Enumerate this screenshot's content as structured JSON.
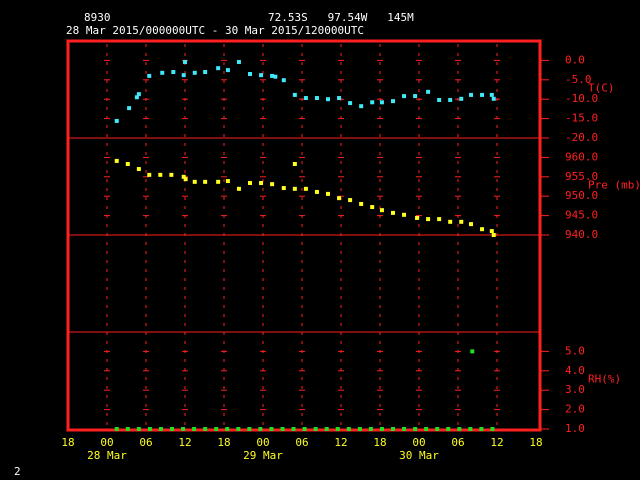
{
  "header": {
    "station": "8930",
    "location": "72.53S   97.54W   145M",
    "period": "28 Mar 2015/000000UTC - 30 Mar 2015/120000UTC"
  },
  "page_number": "2",
  "chart_data": [
    {
      "type": "scatter",
      "xlim": [
        0,
        72
      ],
      "ylim": [
        -20,
        5
      ],
      "yticks": [
        {
          "value": 0,
          "label": "0.0"
        },
        {
          "value": -5,
          "label": "-5.0"
        },
        {
          "value": -10,
          "label": "-10.0"
        },
        {
          "value": -15,
          "label": "-15.0"
        },
        {
          "value": -20,
          "label": "-20.0"
        }
      ],
      "series": [
        {
          "name": "T(C)",
          "color": "#40e8f8",
          "x": [
            7.5,
            9.4,
            10.6,
            10.9,
            12.5,
            14.5,
            16.2,
            17.8,
            18,
            19.5,
            21.1,
            23.1,
            24.6,
            26.3,
            28,
            29.7,
            31.4,
            31.9,
            33.2,
            34.9,
            36.6,
            38.3,
            40,
            41.7,
            43.4,
            45.1,
            46.8,
            48.3,
            50,
            51.7,
            53.4,
            55.4,
            57.1,
            58.8,
            60.5,
            62,
            63.7,
            65.2,
            65.5
          ],
          "values": [
            -15.6,
            -12.3,
            -9.5,
            -8.7,
            -4.0,
            -3.2,
            -3.0,
            -3.8,
            -0.4,
            -3.2,
            -3.0,
            -2.0,
            -2.5,
            -0.4,
            -3.5,
            -3.8,
            -4.0,
            -4.2,
            -5.1,
            -8.9,
            -9.7,
            -9.7,
            -10.0,
            -9.7,
            -11.0,
            -11.8,
            -10.8,
            -10.8,
            -10.5,
            -9.2,
            -9.2,
            -8.1,
            -10.2,
            -10.2,
            -9.9,
            -8.9,
            -8.9,
            -8.9,
            -9.9
          ]
        }
      ]
    },
    {
      "type": "scatter",
      "xlim": [
        0,
        72
      ],
      "ylim": [
        940,
        965
      ],
      "yticks": [
        {
          "value": 960,
          "label": "960.0"
        },
        {
          "value": 955,
          "label": "955.0"
        },
        {
          "value": 950,
          "label": "950.0"
        },
        {
          "value": 945,
          "label": "945.0"
        },
        {
          "value": 940,
          "label": "940.0"
        }
      ],
      "series": [
        {
          "name": "Pre (mb)",
          "color": "#ffff20",
          "x": [
            7.5,
            9.2,
            10.9,
            12.5,
            14.2,
            15.9,
            17.8,
            18.1,
            19.5,
            21.1,
            23.1,
            24.6,
            26.3,
            28,
            29.7,
            31.4,
            33.2,
            34.9,
            34.9,
            36.6,
            38.3,
            40,
            41.7,
            43.4,
            45.1,
            46.8,
            48.3,
            50,
            51.7,
            53.7,
            55.4,
            57.1,
            58.8,
            60.5,
            62,
            63.7,
            65.2,
            65.5
          ],
          "values": [
            959.1,
            958.3,
            957.0,
            955.5,
            955.5,
            955.5,
            955.0,
            954.4,
            953.7,
            953.7,
            953.7,
            953.9,
            951.9,
            953.4,
            953.4,
            953.1,
            952.1,
            958.3,
            951.9,
            951.9,
            951.1,
            950.6,
            949.5,
            949.0,
            948.0,
            947.2,
            946.4,
            945.7,
            945.2,
            944.4,
            944.1,
            944.1,
            943.4,
            943.4,
            942.8,
            941.5,
            941.0,
            940.0
          ]
        }
      ]
    },
    {
      "type": "scatter",
      "xlim": [
        0,
        72
      ],
      "ylim": [
        1,
        6
      ],
      "yticks": [
        {
          "value": 5,
          "label": "5.0"
        },
        {
          "value": 4,
          "label": "4.0"
        },
        {
          "value": 3,
          "label": "3.0"
        },
        {
          "value": 2,
          "label": "2.0"
        },
        {
          "value": 1,
          "label": "1.0"
        }
      ],
      "xticks": [
        {
          "value": 0,
          "label": "18"
        },
        {
          "value": 6,
          "label": "00"
        },
        {
          "value": 12,
          "label": "06"
        },
        {
          "value": 18,
          "label": "12"
        },
        {
          "value": 24,
          "label": "18"
        },
        {
          "value": 30,
          "label": "00"
        },
        {
          "value": 36,
          "label": "06"
        },
        {
          "value": 42,
          "label": "12"
        },
        {
          "value": 48,
          "label": "18"
        },
        {
          "value": 54,
          "label": "00"
        },
        {
          "value": 60,
          "label": "06"
        },
        {
          "value": 66,
          "label": "12"
        },
        {
          "value": 72,
          "label": "18"
        }
      ],
      "date_labels": [
        {
          "value": 6,
          "label": "28 Mar"
        },
        {
          "value": 30,
          "label": "29 Mar"
        },
        {
          "value": 54,
          "label": "30 Mar"
        }
      ],
      "series": [
        {
          "name": "RH(%)",
          "color": "#20e020",
          "x": [
            7.5,
            9.2,
            10.9,
            12.6,
            14.3,
            16,
            17.7,
            19.4,
            21.1,
            22.8,
            24.5,
            26.2,
            27.9,
            29.6,
            31.3,
            33,
            34.7,
            36.4,
            38.1,
            39.8,
            41.5,
            43.2,
            44.9,
            46.6,
            48.3,
            50,
            51.7,
            53.4,
            55.1,
            56.8,
            58.5,
            60.2,
            61.9,
            62.2,
            63.6,
            65.3
          ],
          "values": [
            1,
            1,
            1,
            1,
            1,
            1,
            1,
            1,
            1,
            1,
            1,
            1,
            1,
            1,
            1,
            1,
            1,
            1,
            1,
            1,
            1,
            1,
            1,
            1,
            1,
            1,
            1,
            1,
            1,
            1,
            1,
            1,
            1,
            5,
            1,
            1
          ]
        }
      ]
    }
  ]
}
